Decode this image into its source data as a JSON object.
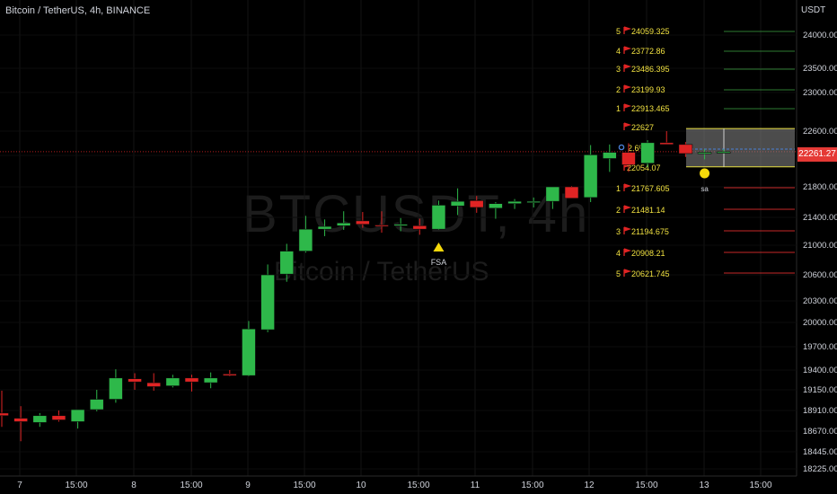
{
  "header": {
    "title": "Bitcoin / TetherUS, 4h, BINANCE",
    "unit": "USDT"
  },
  "watermark": {
    "symbol": "BTCUSDT, 4h",
    "name": "Bitcoin / TetherUS"
  },
  "last_price": "22261.27",
  "colors": {
    "up": "#2eb84a",
    "down": "#e02424",
    "target_text": "#f0e040",
    "target_flag": "#e02424",
    "upper_lines": "#2e7d32",
    "lower_lines": "#c62828",
    "box_fill": "#8a8a8a",
    "box_border": "#e8e040"
  },
  "chart_data": {
    "type": "candlestick",
    "title": "Bitcoin / TetherUS, 4h, BINANCE",
    "ylabel": "USDT",
    "ylim": [
      18100,
      24250
    ],
    "y_ticks": [
      "24000.00",
      "23500.00",
      "23000.00",
      "22600.00",
      "22200.00",
      "21800.00",
      "21400.00",
      "21000.00",
      "20600.00",
      "20300.00",
      "20000.00",
      "19700.00",
      "19400.00",
      "19150.00",
      "18910.00",
      "18670.00",
      "18445.00",
      "18225.00"
    ],
    "x_ticks": [
      "7",
      "15:00",
      "8",
      "15:00",
      "9",
      "15:00",
      "10",
      "15:00",
      "11",
      "15:00",
      "12",
      "15:00",
      "13",
      "15:00"
    ],
    "candles": [
      {
        "o": 18880,
        "h": 19140,
        "l": 18720,
        "c": 18850
      },
      {
        "o": 18820,
        "h": 18960,
        "l": 18560,
        "c": 18780
      },
      {
        "o": 18770,
        "h": 18880,
        "l": 18720,
        "c": 18850
      },
      {
        "o": 18850,
        "h": 18910,
        "l": 18780,
        "c": 18800
      },
      {
        "o": 18780,
        "h": 18880,
        "l": 18700,
        "c": 18920
      },
      {
        "o": 18920,
        "h": 19150,
        "l": 18900,
        "c": 19040
      },
      {
        "o": 19040,
        "h": 19410,
        "l": 19000,
        "c": 19300
      },
      {
        "o": 19290,
        "h": 19360,
        "l": 19150,
        "c": 19250
      },
      {
        "o": 19240,
        "h": 19360,
        "l": 19140,
        "c": 19190
      },
      {
        "o": 19200,
        "h": 19340,
        "l": 19180,
        "c": 19300
      },
      {
        "o": 19300,
        "h": 19340,
        "l": 19130,
        "c": 19250
      },
      {
        "o": 19240,
        "h": 19370,
        "l": 19170,
        "c": 19300
      },
      {
        "o": 19350,
        "h": 19400,
        "l": 19320,
        "c": 19330
      },
      {
        "o": 19330,
        "h": 20020,
        "l": 19320,
        "c": 19920
      },
      {
        "o": 19910,
        "h": 20740,
        "l": 19880,
        "c": 20600
      },
      {
        "o": 20610,
        "h": 21020,
        "l": 20520,
        "c": 20920
      },
      {
        "o": 20920,
        "h": 21420,
        "l": 20900,
        "c": 21230
      },
      {
        "o": 21230,
        "h": 21370,
        "l": 21130,
        "c": 21270
      },
      {
        "o": 21280,
        "h": 21480,
        "l": 21220,
        "c": 21320
      },
      {
        "o": 21350,
        "h": 21470,
        "l": 21250,
        "c": 21300
      },
      {
        "o": 21290,
        "h": 21480,
        "l": 21180,
        "c": 21280
      },
      {
        "o": 21280,
        "h": 21390,
        "l": 21200,
        "c": 21300
      },
      {
        "o": 21280,
        "h": 21380,
        "l": 21150,
        "c": 21230
      },
      {
        "o": 21230,
        "h": 21620,
        "l": 21220,
        "c": 21560
      },
      {
        "o": 21550,
        "h": 21780,
        "l": 21430,
        "c": 21610
      },
      {
        "o": 21620,
        "h": 21680,
        "l": 21460,
        "c": 21530
      },
      {
        "o": 21520,
        "h": 21600,
        "l": 21380,
        "c": 21580
      },
      {
        "o": 21580,
        "h": 21640,
        "l": 21510,
        "c": 21610
      },
      {
        "o": 21600,
        "h": 21660,
        "l": 21530,
        "c": 21610
      },
      {
        "o": 21610,
        "h": 21800,
        "l": 21510,
        "c": 21800
      },
      {
        "o": 21800,
        "h": 21810,
        "l": 21650,
        "c": 21650
      },
      {
        "o": 21660,
        "h": 22370,
        "l": 21600,
        "c": 22210
      },
      {
        "o": 22160,
        "h": 22380,
        "l": 21990,
        "c": 22250
      },
      {
        "o": 22250,
        "h": 22400,
        "l": 21990,
        "c": 22080
      },
      {
        "o": 22100,
        "h": 22450,
        "l": 22050,
        "c": 22410
      },
      {
        "o": 22410,
        "h": 22600,
        "l": 22390,
        "c": 22380
      },
      {
        "o": 22380,
        "h": 22420,
        "l": 22180,
        "c": 22230
      },
      {
        "o": 22230,
        "h": 22300,
        "l": 22150,
        "c": 22250
      },
      {
        "o": 22260,
        "h": 22300,
        "l": 22230,
        "c": 22260
      }
    ],
    "markers": [
      {
        "label": "FSA",
        "candle": 23,
        "kind": "triangle"
      },
      {
        "label": "sa",
        "candle": 37,
        "kind": "circle"
      }
    ],
    "upper_targets": [
      {
        "n": "5",
        "value": "24059.325"
      },
      {
        "n": "4",
        "value": "23772.86"
      },
      {
        "n": "3",
        "value": "23486.395"
      },
      {
        "n": "2",
        "value": "23199.93"
      },
      {
        "n": "1",
        "value": "22913.465"
      },
      {
        "n": "",
        "value": "22627"
      }
    ],
    "middle_label": "2.6%",
    "mid_value": "22054.07",
    "lower_targets": [
      {
        "n": "1",
        "value": "21767.605"
      },
      {
        "n": "2",
        "value": "21481.14"
      },
      {
        "n": "3",
        "value": "21194.675"
      },
      {
        "n": "4",
        "value": "20908.21"
      },
      {
        "n": "5",
        "value": "20621.745"
      }
    ],
    "range_box": {
      "top": 22627,
      "bottom": 22054.07
    },
    "last_price": 22261.27
  }
}
